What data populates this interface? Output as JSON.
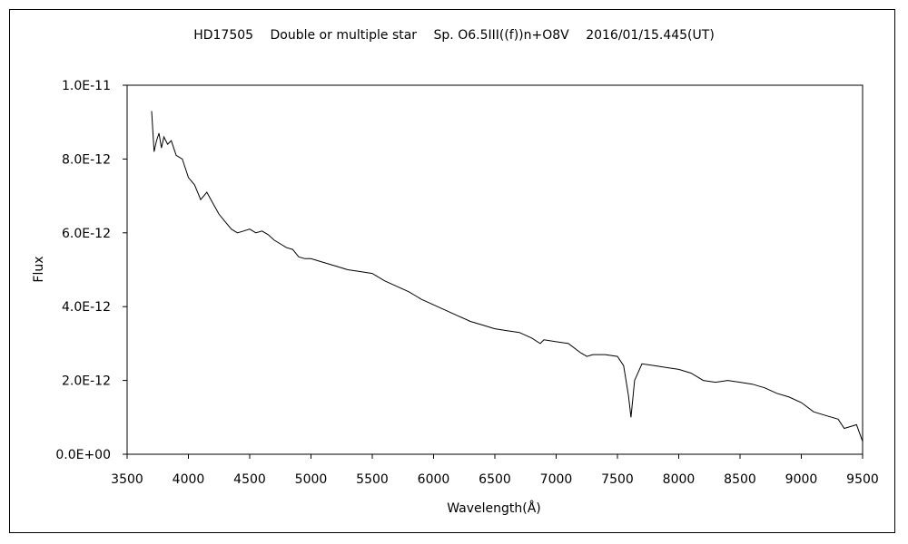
{
  "chart_data": {
    "type": "line",
    "title": "HD17505　 Double or multiple star　 Sp. O6.5III((f))n+O8V　 2016/01/15.445(UT)",
    "xlabel": "Wavelength(Å)",
    "ylabel": "Flux",
    "xlim": [
      3500,
      9500
    ],
    "ylim": [
      0,
      1e-11
    ],
    "x_ticks": [
      3500,
      4000,
      4500,
      5000,
      5500,
      6000,
      6500,
      7000,
      7500,
      8000,
      8500,
      9000,
      9500
    ],
    "x_tick_labels": [
      "3500",
      "4000",
      "4500",
      "5000",
      "5500",
      "6000",
      "6500",
      "7000",
      "7500",
      "8000",
      "8500",
      "9000",
      "9500"
    ],
    "y_ticks": [
      0,
      2e-12,
      4e-12,
      6e-12,
      8e-12,
      1e-11
    ],
    "y_tick_labels": [
      "0.0E+00",
      "2.0E-12",
      "4.0E-12",
      "6.0E-12",
      "8.0E-12",
      "1.0E-11"
    ],
    "grid": false,
    "series_color": "#000000",
    "series": [
      {
        "x": [
          3700,
          3720,
          3740,
          3760,
          3780,
          3800,
          3830,
          3860,
          3900,
          3950,
          4000,
          4050,
          4100,
          4150,
          4200,
          4250,
          4300,
          4350,
          4400,
          4450,
          4500,
          4550,
          4600,
          4650,
          4700,
          4750,
          4800,
          4850,
          4900,
          4950,
          5000,
          5100,
          5200,
          5300,
          5400,
          5500,
          5600,
          5700,
          5800,
          5850,
          5900,
          6000,
          6100,
          6200,
          6300,
          6400,
          6500,
          6600,
          6700,
          6800,
          6870,
          6900,
          7000,
          7100,
          7200,
          7250,
          7300,
          7400,
          7500,
          7550,
          7590,
          7610,
          7640,
          7700,
          7800,
          7900,
          8000,
          8100,
          8200,
          8300,
          8400,
          8500,
          8600,
          8700,
          8800,
          8900,
          9000,
          9100,
          9200,
          9300,
          9350,
          9400,
          9450,
          9500
        ],
        "y": [
          9.3e-12,
          8.2e-12,
          8.5e-12,
          8.7e-12,
          8.3e-12,
          8.6e-12,
          8.4e-12,
          8.5e-12,
          8.1e-12,
          8e-12,
          7.5e-12,
          7.3e-12,
          6.9e-12,
          7.1e-12,
          6.8e-12,
          6.5e-12,
          6.3e-12,
          6.1e-12,
          6e-12,
          6.05e-12,
          6.1e-12,
          6e-12,
          6.05e-12,
          5.95e-12,
          5.8e-12,
          5.7e-12,
          5.6e-12,
          5.55e-12,
          5.35e-12,
          5.3e-12,
          5.3e-12,
          5.2e-12,
          5.1e-12,
          5e-12,
          4.95e-12,
          4.9e-12,
          4.7e-12,
          4.55e-12,
          4.4e-12,
          4.3e-12,
          4.2e-12,
          4.05e-12,
          3.9e-12,
          3.75e-12,
          3.6e-12,
          3.5e-12,
          3.4e-12,
          3.35e-12,
          3.3e-12,
          3.15e-12,
          3e-12,
          3.1e-12,
          3.05e-12,
          3e-12,
          2.75e-12,
          2.65e-12,
          2.7e-12,
          2.7e-12,
          2.65e-12,
          2.4e-12,
          1.6e-12,
          1e-12,
          2e-12,
          2.45e-12,
          2.4e-12,
          2.35e-12,
          2.3e-12,
          2.2e-12,
          2e-12,
          1.95e-12,
          2e-12,
          1.95e-12,
          1.9e-12,
          1.8e-12,
          1.65e-12,
          1.55e-12,
          1.4e-12,
          1.15e-12,
          1.05e-12,
          9.5e-13,
          7e-13,
          7.5e-13,
          8e-13,
          3.5e-13
        ]
      }
    ]
  }
}
